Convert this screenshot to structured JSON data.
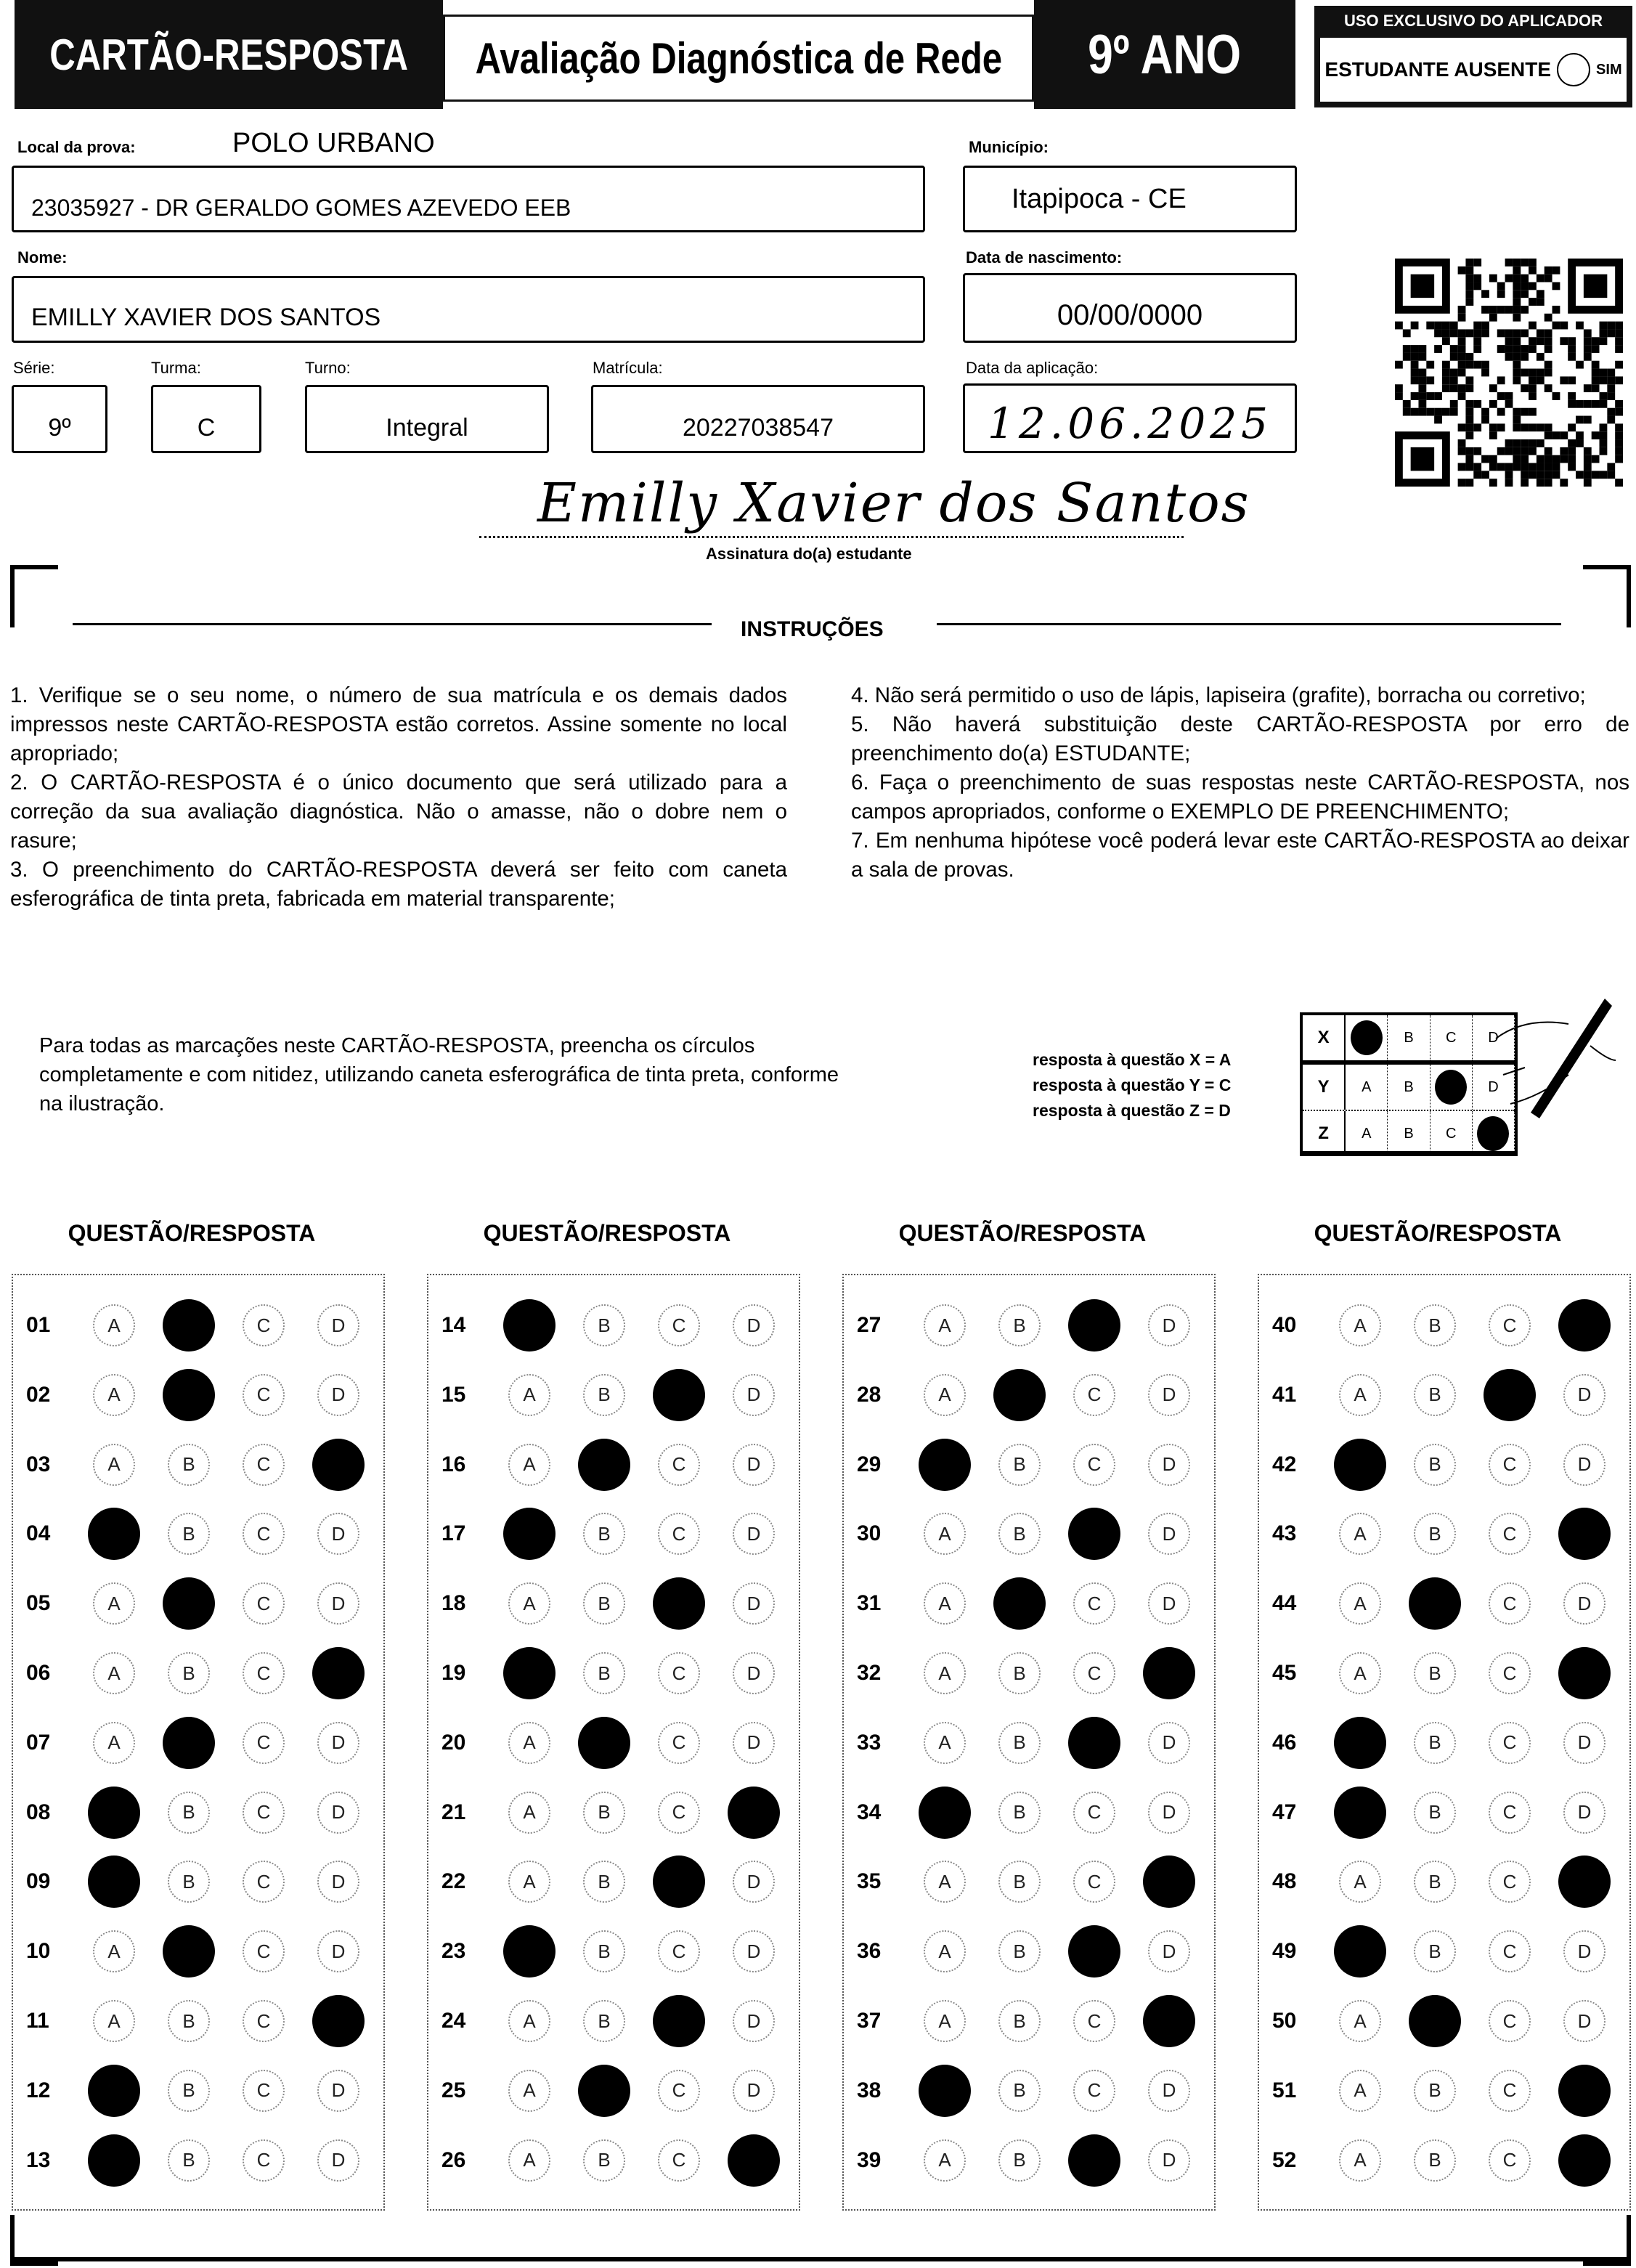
{
  "header": {
    "title": "CARTÃO-RESPOSTA",
    "subtitle": "Avaliação Diagnóstica de Rede",
    "grade": "9º ANO",
    "applicator": {
      "title": "USO EXCLUSIVO DO APLICADOR",
      "absent_label": "ESTUDANTE AUSENTE",
      "yes_label": "SIM",
      "absent_checked": false
    }
  },
  "fields": {
    "local_label": "Local da prova:",
    "local_value": "POLO URBANO",
    "school": "23035927 - DR GERALDO GOMES AZEVEDO EEB",
    "municipio_label": "Município:",
    "municipio": "Itapipoca - CE",
    "nome_label": "Nome:",
    "nome": "EMILLY XAVIER DOS SANTOS",
    "nascimento_label": "Data de nascimento:",
    "nascimento": "00/00/0000",
    "serie_label": "Série:",
    "serie": "9º",
    "turma_label": "Turma:",
    "turma": "C",
    "turno_label": "Turno:",
    "turno": "Integral",
    "matricula_label": "Matrícula:",
    "matricula": "20227038547",
    "aplicacao_label": "Data da aplicação:",
    "aplicacao": "12.06.2025",
    "signature": "Emilly Xavier dos Santos",
    "signature_label": "Assinatura do(a) estudante"
  },
  "instructions": {
    "title": "INSTRUÇÕES",
    "left": [
      "1. Verifique se o seu nome, o número de sua matrícula e os demais dados impressos neste CARTÃO-RESPOSTA estão corretos. Assine somente no local apropriado;",
      "2. O CARTÃO-RESPOSTA é o único documento que será utilizado para a correção da sua avaliação diagnóstica. Não o amasse, não o dobre nem o rasure;",
      "3. O preenchimento do CARTÃO-RESPOSTA deverá ser feito com caneta esferográfica de tinta preta, fabricada em material transparente;"
    ],
    "right": [
      "4. Não será permitido o uso de lápis, lapiseira (grafite), borracha ou corretivo;",
      "5. Não haverá substituição deste CARTÃO-RESPOSTA por erro de preenchimento do(a) ESTUDANTE;",
      "6. Faça o preenchimento de suas respostas neste CARTÃO-RESPOSTA, nos campos apropriados, conforme o EXEMPLO DE PREENCHIMENTO;",
      "7. Em nenhuma hipótese você poderá levar este CARTÃO-RESPOSTA ao deixar a sala de provas."
    ],
    "fill_note": "Para todas as marcações neste CARTÃO-RESPOSTA, preencha os círculos completamente e com nitidez, utilizando caneta esferográfica de tinta preta, conforme na ilustração.",
    "example_lines": [
      "resposta à questão X = A",
      "resposta à questão Y = C",
      "resposta à questão Z = D"
    ],
    "example_rows": [
      {
        "q": "X",
        "answer": "A"
      },
      {
        "q": "Y",
        "answer": "C"
      },
      {
        "q": "Z",
        "answer": "D"
      }
    ]
  },
  "answers": {
    "column_header": "QUESTÃO/RESPOSTA",
    "options": [
      "A",
      "B",
      "C",
      "D"
    ],
    "columns": [
      [
        {
          "n": "01",
          "a": "B"
        },
        {
          "n": "02",
          "a": "B"
        },
        {
          "n": "03",
          "a": "D"
        },
        {
          "n": "04",
          "a": "A"
        },
        {
          "n": "05",
          "a": "B"
        },
        {
          "n": "06",
          "a": "D"
        },
        {
          "n": "07",
          "a": "B"
        },
        {
          "n": "08",
          "a": "A"
        },
        {
          "n": "09",
          "a": "A"
        },
        {
          "n": "10",
          "a": "B"
        },
        {
          "n": "11",
          "a": "D"
        },
        {
          "n": "12",
          "a": "A"
        },
        {
          "n": "13",
          "a": "A"
        }
      ],
      [
        {
          "n": "14",
          "a": "A"
        },
        {
          "n": "15",
          "a": "C"
        },
        {
          "n": "16",
          "a": "B"
        },
        {
          "n": "17",
          "a": "A"
        },
        {
          "n": "18",
          "a": "C"
        },
        {
          "n": "19",
          "a": "A"
        },
        {
          "n": "20",
          "a": "B"
        },
        {
          "n": "21",
          "a": "D"
        },
        {
          "n": "22",
          "a": "C"
        },
        {
          "n": "23",
          "a": "A"
        },
        {
          "n": "24",
          "a": "C"
        },
        {
          "n": "25",
          "a": "B"
        },
        {
          "n": "26",
          "a": "D"
        }
      ],
      [
        {
          "n": "27",
          "a": "C"
        },
        {
          "n": "28",
          "a": "B"
        },
        {
          "n": "29",
          "a": "A"
        },
        {
          "n": "30",
          "a": "C"
        },
        {
          "n": "31",
          "a": "B"
        },
        {
          "n": "32",
          "a": "D"
        },
        {
          "n": "33",
          "a": "C"
        },
        {
          "n": "34",
          "a": "A"
        },
        {
          "n": "35",
          "a": "D"
        },
        {
          "n": "36",
          "a": "C"
        },
        {
          "n": "37",
          "a": "D"
        },
        {
          "n": "38",
          "a": "A"
        },
        {
          "n": "39",
          "a": "C"
        }
      ],
      [
        {
          "n": "40",
          "a": "D"
        },
        {
          "n": "41",
          "a": "C"
        },
        {
          "n": "42",
          "a": "A"
        },
        {
          "n": "43",
          "a": "D"
        },
        {
          "n": "44",
          "a": "B"
        },
        {
          "n": "45",
          "a": "D"
        },
        {
          "n": "46",
          "a": "A"
        },
        {
          "n": "47",
          "a": "A"
        },
        {
          "n": "48",
          "a": "D"
        },
        {
          "n": "49",
          "a": "A"
        },
        {
          "n": "50",
          "a": "B"
        },
        {
          "n": "51",
          "a": "D"
        },
        {
          "n": "52",
          "a": "D"
        }
      ]
    ]
  },
  "icons": {
    "qr": "qr-code",
    "absent": "empty-circle",
    "example": "hand-with-pen"
  }
}
